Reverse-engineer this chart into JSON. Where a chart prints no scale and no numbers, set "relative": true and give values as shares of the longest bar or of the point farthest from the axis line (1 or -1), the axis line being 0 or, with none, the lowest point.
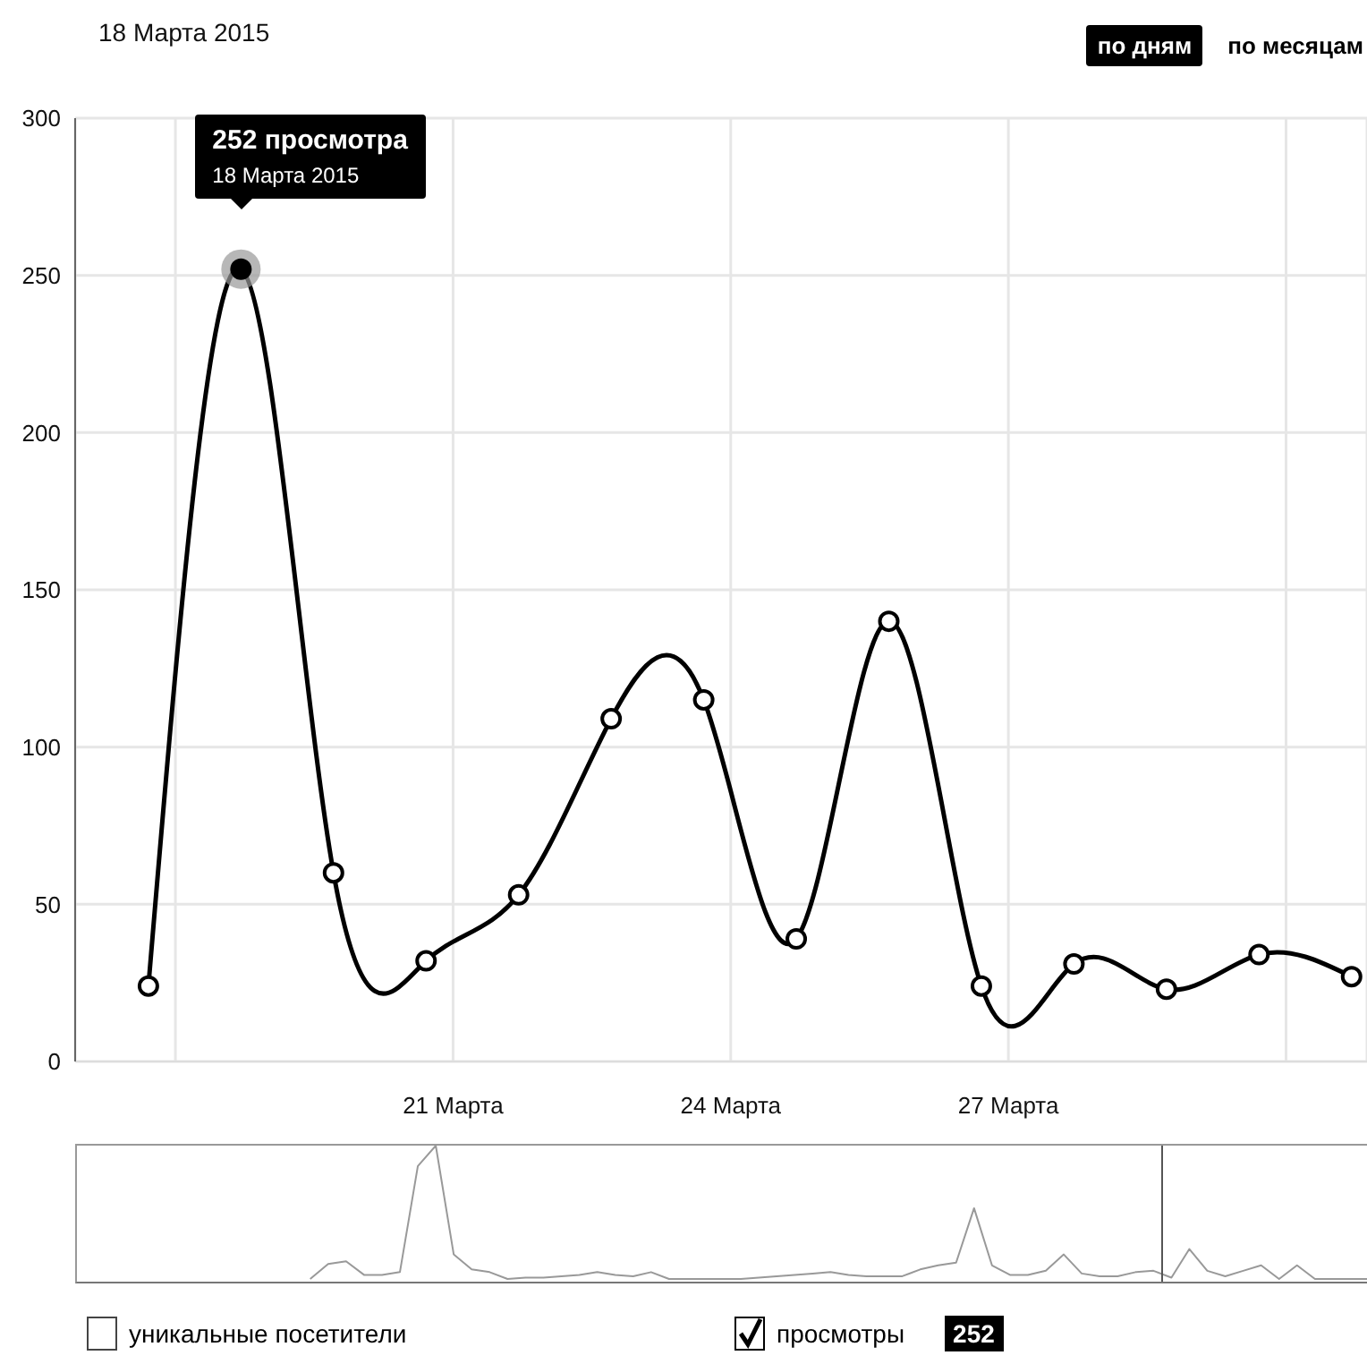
{
  "chart_data": [
    {
      "type": "line",
      "title": "18 Марта 2015",
      "x": [
        "2015-03-17T17:00",
        "2015-03-18T17:00",
        "2015-03-19T17:00",
        "2015-03-20T17:00",
        "2015-03-21T17:00",
        "2015-03-22T17:00",
        "2015-03-23T17:00",
        "2015-03-24T17:00",
        "2015-03-25T17:00",
        "2015-03-26T17:00",
        "2015-03-27T17:00",
        "2015-03-28T17:00",
        "2015-03-29T17:00",
        "2015-03-30T17:00"
      ],
      "series": [
        {
          "name": "просмотры",
          "color": "#000000",
          "values": [
            24,
            252,
            60,
            32,
            53,
            109,
            115,
            39,
            140,
            24,
            31,
            23,
            34,
            27
          ]
        },
        {
          "name": "уникальные посетители",
          "values": [
            null,
            null,
            null,
            null,
            null,
            null,
            null,
            null,
            null,
            null,
            null,
            null,
            null,
            null
          ]
        }
      ],
      "xlim": [
        "2015-03-16T22:00",
        "2015-03-30T21:00"
      ],
      "xticks": [
        {
          "value": "2015-03-18",
          "label": null
        },
        {
          "value": "2015-03-21",
          "label": "21 Марта"
        },
        {
          "value": "2015-03-24",
          "label": "24 Марта"
        },
        {
          "value": "2015-03-27",
          "label": "27 Марта"
        },
        {
          "value": "2015-03-30",
          "label": null
        }
      ],
      "ylim": [
        0,
        300
      ],
      "yticks": [
        0,
        50,
        100,
        150,
        200,
        250,
        300
      ],
      "grid": true,
      "marker": "circle",
      "line_style": "solid",
      "legend": "bottom",
      "annotations": [
        "252 просмотра",
        "18 Марта 2015",
        "по дням",
        "по месяцам",
        "252"
      ]
    },
    {
      "type": "line",
      "relative": true,
      "tick_labels": false,
      "categories": [
        null,
        null,
        null,
        null,
        null,
        null,
        null,
        null,
        null,
        null,
        null,
        null,
        null,
        null,
        null,
        null,
        null,
        null,
        null,
        null,
        null,
        null,
        null,
        null,
        null,
        null,
        null,
        null,
        null,
        null,
        null,
        null,
        null,
        null,
        null,
        null,
        null,
        null,
        null,
        null,
        null,
        null,
        null,
        null,
        null,
        null,
        null,
        null,
        null,
        null,
        null,
        null,
        null,
        null,
        null,
        null,
        null,
        null,
        null,
        null,
        null,
        null,
        null,
        null,
        null,
        null,
        null,
        null,
        null,
        null,
        null,
        null,
        null
      ],
      "series": [
        {
          "color": "#999999",
          "values": [
            null,
            null,
            null,
            null,
            null,
            null,
            null,
            null,
            null,
            null,
            null,
            null,
            null,
            0.02,
            0.13,
            0.15,
            0.05,
            0.05,
            0.07,
            0.85,
            1,
            0.2,
            0.09,
            0.07,
            0.02,
            0.03,
            0.03,
            0.04,
            0.05,
            0.07,
            0.05,
            0.04,
            0.07,
            0.02,
            0.02,
            0.02,
            0.02,
            0.02,
            0.03,
            0.04,
            0.05,
            0.06,
            0.07,
            0.05,
            0.04,
            0.04,
            0.04,
            0.09,
            0.12,
            0.14,
            0.54,
            0.12,
            0.05,
            0.05,
            0.08,
            0.2,
            0.06,
            0.04,
            0.04,
            0.07,
            0.08,
            0.03,
            0.24,
            0.08,
            0.04,
            0.08,
            0.12,
            0.02,
            0.12,
            0.02,
            0.02,
            0.02,
            0.02
          ]
        }
      ]
    }
  ]
}
